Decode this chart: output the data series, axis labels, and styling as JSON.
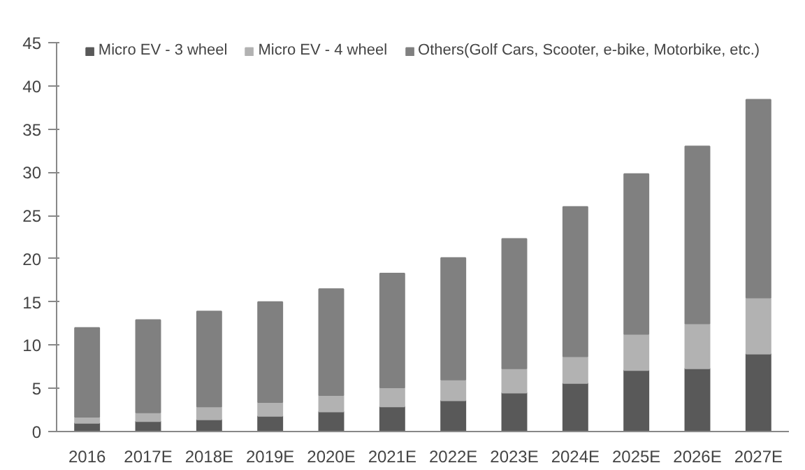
{
  "chart_data": {
    "type": "bar",
    "stacked": true,
    "categories": [
      "2016",
      "2017E",
      "2018E",
      "2019E",
      "2020E",
      "2021E",
      "2022E",
      "2023E",
      "2024E",
      "2025E",
      "2026E",
      "2027E"
    ],
    "series": [
      {
        "name": "Micro EV - 3 wheel",
        "color": "#595959",
        "values": [
          1.0,
          1.2,
          1.4,
          1.8,
          2.3,
          2.9,
          3.6,
          4.5,
          5.6,
          7.1,
          7.3,
          9.0
        ]
      },
      {
        "name": "Micro EV - 4 wheel",
        "color": "#b2b2b2",
        "values": [
          0.7,
          1.0,
          1.5,
          1.6,
          1.9,
          2.2,
          2.4,
          2.8,
          3.1,
          4.2,
          5.2,
          6.5
        ]
      },
      {
        "name": "Others(Golf Cars, Scooter, e-bike, Motorbike, etc.)",
        "color": "#808080",
        "values": [
          10.3,
          10.7,
          11.0,
          11.6,
          12.3,
          13.2,
          14.1,
          15.0,
          17.3,
          18.5,
          20.5,
          22.9
        ]
      }
    ],
    "ylim": [
      0,
      45
    ],
    "yticks": [
      0,
      5,
      10,
      15,
      20,
      25,
      30,
      35,
      40,
      45
    ],
    "grid": false,
    "legend": "top"
  }
}
